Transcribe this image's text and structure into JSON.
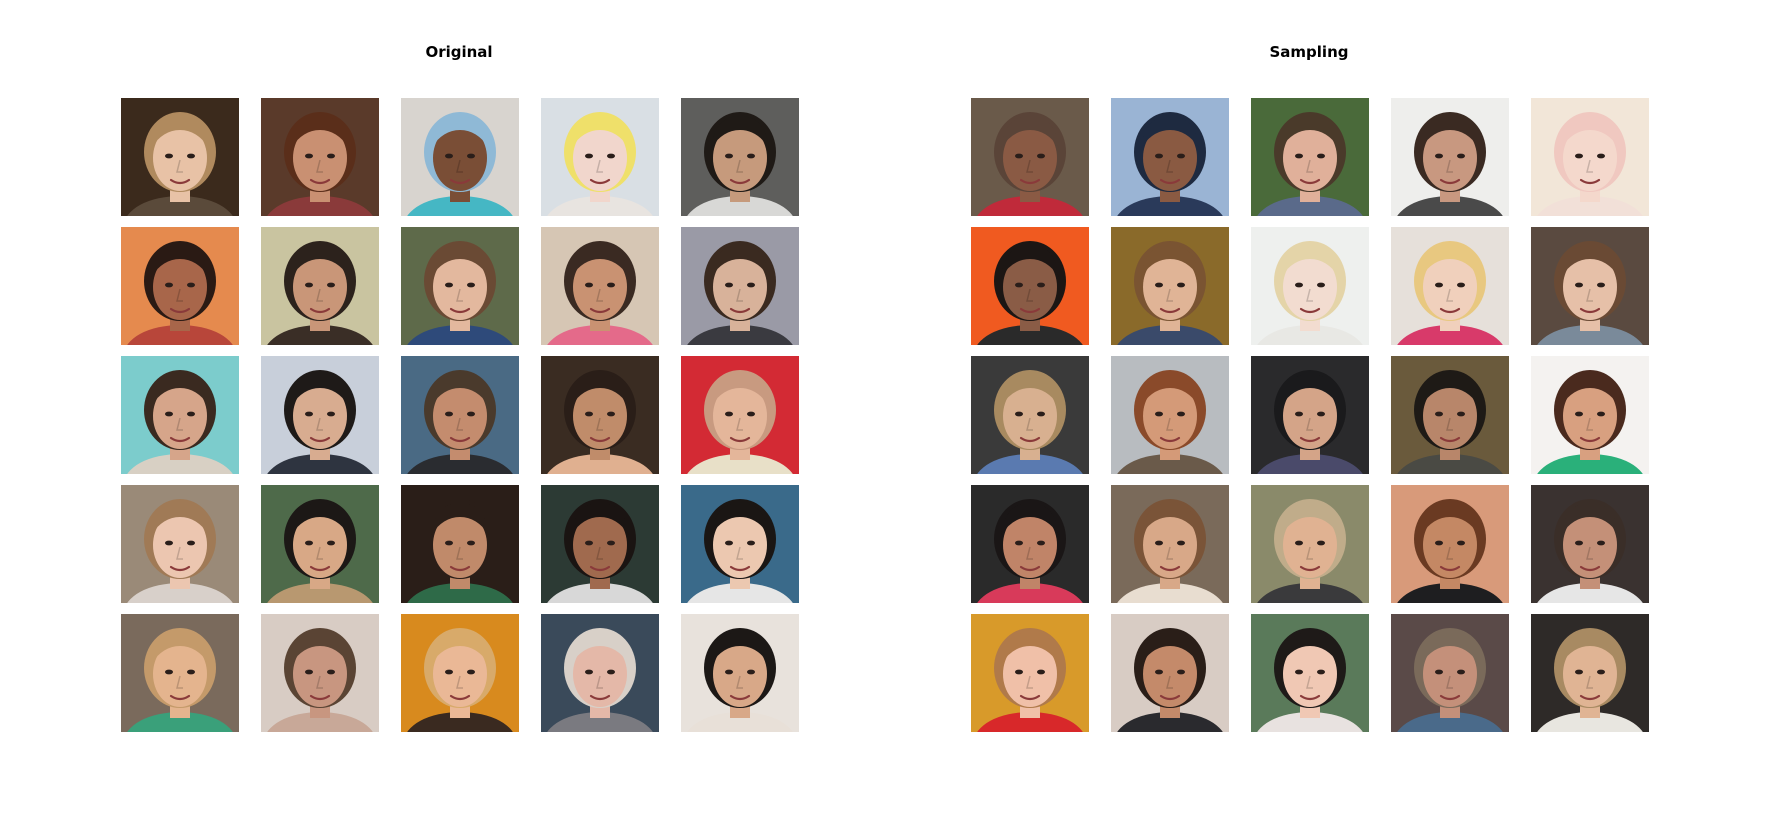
{
  "figure": {
    "panels": [
      {
        "title": "Original",
        "images": [
          {
            "bg": "#3b2a1c",
            "skin": "#e8c2a6",
            "hair": "#b08a5e",
            "shirt": "#5a4a3a"
          },
          {
            "bg": "#5a3a2a",
            "skin": "#c99072",
            "hair": "#5a2e1a",
            "shirt": "#8a3a3a"
          },
          {
            "bg": "#d8d4cf",
            "skin": "#7a4e36",
            "hair": "#8fb9d6",
            "shirt": "#45b7c4"
          },
          {
            "bg": "#d9dfe4",
            "skin": "#f1d6cc",
            "hair": "#efe06a",
            "shirt": "#e8e4e0"
          },
          {
            "bg": "#5e5e5c",
            "skin": "#c69a7c",
            "hair": "#1f1a16",
            "shirt": "#d8d8d6"
          },
          {
            "bg": "#e58a4e",
            "skin": "#a8664a",
            "hair": "#2a1a14",
            "shirt": "#b8463a"
          },
          {
            "bg": "#c9c4a0",
            "skin": "#c99678",
            "hair": "#2c221c",
            "shirt": "#3a2e26"
          },
          {
            "bg": "#5e6a4a",
            "skin": "#e3b89e",
            "hair": "#6a4a34",
            "shirt": "#2e4a7a"
          },
          {
            "bg": "#d6c6b4",
            "skin": "#c99272",
            "hair": "#3a2a22",
            "shirt": "#e46a8a"
          },
          {
            "bg": "#9a9aa6",
            "skin": "#d8b29a",
            "hair": "#3a2a20",
            "shirt": "#3a3a40"
          },
          {
            "bg": "#7ccccc",
            "skin": "#d6a58a",
            "hair": "#3a2a20",
            "shirt": "#d8d0c4"
          },
          {
            "bg": "#c8cfda",
            "skin": "#d8ac90",
            "hair": "#1e1a18",
            "shirt": "#2e3440"
          },
          {
            "bg": "#4a6a84",
            "skin": "#c48c6e",
            "hair": "#4a3a2c",
            "shirt": "#2a2c30"
          },
          {
            "bg": "#3a2c22",
            "skin": "#c08c6a",
            "hair": "#2a1e18",
            "shirt": "#e0b090"
          },
          {
            "bg": "#d32a34",
            "skin": "#e4b69a",
            "hair": "#c89a80",
            "shirt": "#e8e0c8"
          },
          {
            "bg": "#9a8a78",
            "skin": "#ecc6b0",
            "hair": "#a07a56",
            "shirt": "#d8d0ca"
          },
          {
            "bg": "#4e6a4a",
            "skin": "#d8a886",
            "hair": "#1c1816",
            "shirt": "#b89870"
          },
          {
            "bg": "#2a1e18",
            "skin": "#c08a6a",
            "hair": "#2a1e18",
            "shirt": "#2e6a48"
          },
          {
            "bg": "#2c3a34",
            "skin": "#a06a4e",
            "hair": "#1a1412",
            "shirt": "#d8d8d8"
          },
          {
            "bg": "#3a6a8a",
            "skin": "#ecc8b0",
            "hair": "#1a1614",
            "shirt": "#e6e6e6"
          },
          {
            "bg": "#7a6a5c",
            "skin": "#e4b48e",
            "hair": "#c49a6a",
            "shirt": "#3aa07a"
          },
          {
            "bg": "#d8ccc4",
            "skin": "#c89680",
            "hair": "#5a4434",
            "shirt": "#c8a898"
          },
          {
            "bg": "#d88a1e",
            "skin": "#eab896",
            "hair": "#d8aa6a",
            "shirt": "#3a2a20"
          },
          {
            "bg": "#3a4a5a",
            "skin": "#e4b8a8",
            "hair": "#d8d0c8",
            "shirt": "#7a7a80"
          },
          {
            "bg": "#e8e2dc",
            "skin": "#d8a888",
            "hair": "#1c1816",
            "shirt": "#e8e0d8"
          }
        ]
      },
      {
        "title": "Sampling",
        "images": [
          {
            "bg": "#6a5a4a",
            "skin": "#8a5a44",
            "hair": "#5a4438",
            "shirt": "#c02a3a"
          },
          {
            "bg": "#9ab4d4",
            "skin": "#8a5a42",
            "hair": "#1e2a40",
            "shirt": "#2a3a5a"
          },
          {
            "bg": "#4a6a3a",
            "skin": "#e0b09a",
            "hair": "#4a3a2a",
            "shirt": "#5a6a8a"
          },
          {
            "bg": "#eeeeec",
            "skin": "#c89880",
            "hair": "#3a2a22",
            "shirt": "#4a4a4a"
          },
          {
            "bg": "#f2e6d8",
            "skin": "#f4d8cc",
            "hair": "#f0c8c0",
            "shirt": "#f2e0d8"
          },
          {
            "bg": "#f05a20",
            "skin": "#8a5c46",
            "hair": "#1c1614",
            "shirt": "#2a2a2a"
          },
          {
            "bg": "#8a6a2a",
            "skin": "#e0b496",
            "hair": "#7a5432",
            "shirt": "#3a4a6a"
          },
          {
            "bg": "#eef0ee",
            "skin": "#f2dcd0",
            "hair": "#e4d4a8",
            "shirt": "#e8e8e4"
          },
          {
            "bg": "#e6e0da",
            "skin": "#f0d0bc",
            "hair": "#e8c880",
            "shirt": "#d83a6a"
          },
          {
            "bg": "#5a4a40",
            "skin": "#e6c0a8",
            "hair": "#6a4a34",
            "shirt": "#7a8a9a"
          },
          {
            "bg": "#3a3a3a",
            "skin": "#d8b090",
            "hair": "#a88a60",
            "shirt": "#5a7ab0"
          },
          {
            "bg": "#b8bcc0",
            "skin": "#d49a78",
            "hair": "#8a4a2a",
            "shirt": "#6a5a4a"
          },
          {
            "bg": "#2a2a2c",
            "skin": "#d4a488",
            "hair": "#1a1a1c",
            "shirt": "#4a4a6a"
          },
          {
            "bg": "#6a5a3c",
            "skin": "#b8866a",
            "hair": "#1e1a16",
            "shirt": "#4a4a44"
          },
          {
            "bg": "#f4f2f0",
            "skin": "#d8a080",
            "hair": "#4a2a1e",
            "shirt": "#2ab07a"
          },
          {
            "bg": "#2a2a2a",
            "skin": "#c08468",
            "hair": "#1a1616",
            "shirt": "#d83a5a"
          },
          {
            "bg": "#7a6a5a",
            "skin": "#d8a888",
            "hair": "#7a5438",
            "shirt": "#e8ddd0"
          },
          {
            "bg": "#8a8a6a",
            "skin": "#e0b292",
            "hair": "#c0ac8a",
            "shirt": "#3a3a3c"
          },
          {
            "bg": "#d89a7a",
            "skin": "#c48864",
            "hair": "#6a3a22",
            "shirt": "#1e1e20"
          },
          {
            "bg": "#3a3230",
            "skin": "#c49078",
            "hair": "#3a2e28",
            "shirt": "#e6e6e6"
          },
          {
            "bg": "#d89a2a",
            "skin": "#f0c0a8",
            "hair": "#b07a4a",
            "shirt": "#d8282a"
          },
          {
            "bg": "#d8ccc4",
            "skin": "#c48a6a",
            "hair": "#2a1e18",
            "shirt": "#2a2a2e"
          },
          {
            "bg": "#5a7a5a",
            "skin": "#f0c8b4",
            "hair": "#1e1a18",
            "shirt": "#e8e2e0"
          },
          {
            "bg": "#5a4a48",
            "skin": "#c4907a",
            "hair": "#7a6a5a",
            "shirt": "#4a6a8a"
          },
          {
            "bg": "#2e2a28",
            "skin": "#e0b494",
            "hair": "#a88a62",
            "shirt": "#e8e6e0"
          }
        ]
      }
    ]
  }
}
